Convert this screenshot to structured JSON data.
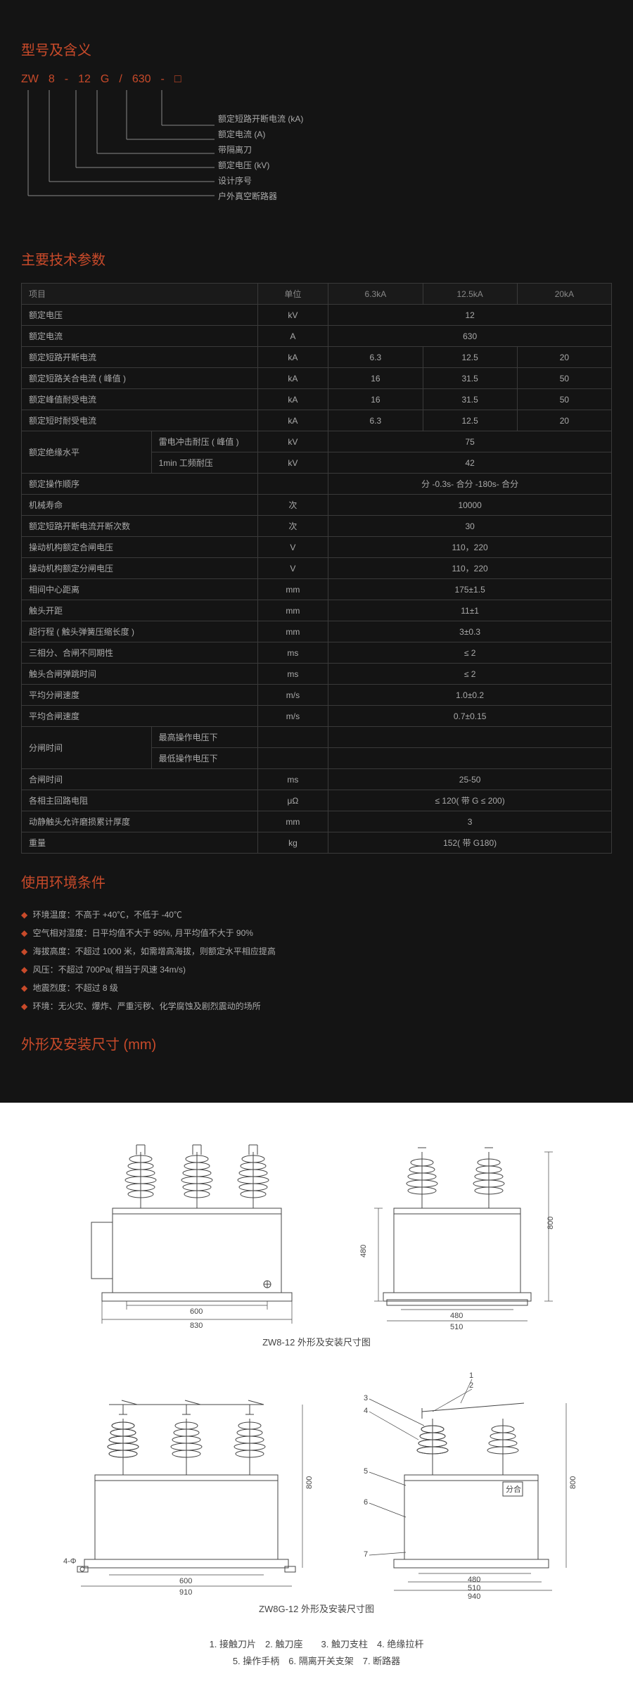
{
  "sections": {
    "model": "型号及含义",
    "spec": "主要技术参数",
    "env": "使用环境条件",
    "dim": "外形及安装尺寸 (mm)"
  },
  "model": {
    "parts": [
      "ZW",
      "8",
      "-",
      "12",
      "G",
      "/",
      "630",
      "-",
      "□"
    ],
    "desc": [
      "额定短路开断电流 (kA)",
      "额定电流 (A)",
      "带隔离刀",
      "额定电压 (kV)",
      "设计序号",
      "户外真空断路器"
    ]
  },
  "specTable": {
    "headers": [
      "项目",
      "单位",
      "6.3kA",
      "12.5kA",
      "20kA"
    ],
    "rows": [
      {
        "label": "额定电压",
        "unit": "kV",
        "span": "12"
      },
      {
        "label": "额定电流",
        "unit": "A",
        "span": "630"
      },
      {
        "label": "额定短路开断电流",
        "unit": "kA",
        "v": [
          "6.3",
          "12.5",
          "20"
        ]
      },
      {
        "label": "额定短路关合电流 ( 峰值 )",
        "unit": "kA",
        "v": [
          "16",
          "31.5",
          "50"
        ]
      },
      {
        "label": "额定峰值耐受电流",
        "unit": "kA",
        "v": [
          "16",
          "31.5",
          "50"
        ]
      },
      {
        "label": "额定短时耐受电流",
        "unit": "kA",
        "v": [
          "6.3",
          "12.5",
          "20"
        ]
      },
      {
        "label": "额定绝缘水平",
        "sub": [
          {
            "label": "雷电冲击耐压 ( 峰值 )",
            "unit": "kV",
            "span": "75"
          },
          {
            "label": "1min 工频耐压",
            "unit": "kV",
            "span": "42"
          }
        ]
      },
      {
        "label": "额定操作顺序",
        "unit": "",
        "span": "分 -0.3s- 合分 -180s- 合分"
      },
      {
        "label": "机械寿命",
        "unit": "次",
        "span": "10000"
      },
      {
        "label": "额定短路开断电流开断次数",
        "unit": "次",
        "span": "30"
      },
      {
        "label": "操动机构额定合闸电压",
        "unit": "V",
        "span": "110，220"
      },
      {
        "label": "操动机构额定分闸电压",
        "unit": "V",
        "span": "110，220"
      },
      {
        "label": "相间中心距离",
        "unit": "mm",
        "span": "175±1.5"
      },
      {
        "label": "触头开距",
        "unit": "mm",
        "span": "11±1"
      },
      {
        "label": "超行程 ( 触头弹簧压缩长度 )",
        "unit": "mm",
        "span": "3±0.3"
      },
      {
        "label": "三相分、合闸不同期性",
        "unit": "ms",
        "span": "≤ 2"
      },
      {
        "label": "触头合闸弹跳时间",
        "unit": "ms",
        "span": "≤ 2"
      },
      {
        "label": "平均分闸速度",
        "unit": "m/s",
        "span": "1.0±0.2"
      },
      {
        "label": "平均合闸速度",
        "unit": "m/s",
        "span": "0.7±0.15"
      },
      {
        "label": "分闸时间",
        "sub2": [
          "最高操作电压下",
          "最低操作电压下"
        ]
      },
      {
        "label": "合闸时间",
        "unit": "ms",
        "span": "25-50"
      },
      {
        "label": "各相主回路电阻",
        "unit": "μΩ",
        "span": "≤ 120( 带 G ≤ 200)"
      },
      {
        "label": "动静触头允许磨损累计厚度",
        "unit": "mm",
        "span": "3"
      },
      {
        "label": "重量",
        "unit": "kg",
        "span": "152( 带 G180)"
      }
    ]
  },
  "env": [
    "环境温度：不高于 +40℃，不低于 -40℃",
    "空气相对湿度：日平均值不大于 95%, 月平均值不大于 90%",
    "海拔高度：不超过 1000 米，如需增高海拔，则额定水平相应提高",
    "风压：不超过 700Pa( 相当于风速 34m/s)",
    "地震烈度：不超过 8 级",
    "环境：无火灾、爆炸、严重污秽、化学腐蚀及剧烈震动的场所"
  ],
  "drawings": {
    "cap1": "ZW8-12 外形及安装尺寸图",
    "cap2": "ZW8G-12 外形及安装尺寸图",
    "dims": {
      "w600": "600",
      "w830": "830",
      "w480": "480",
      "w510": "510",
      "w910": "910",
      "w940": "940",
      "h800": "800",
      "h480i": "480"
    }
  },
  "parts": {
    "line1": "1. 接触刀片　2. 触刀座　　3. 触刀支柱　4. 绝缘拉杆",
    "line2": "5. 操作手柄　6. 隔离开关支架　7. 断路器"
  },
  "colors": {
    "bg": "#141414",
    "accent": "#c84a2a",
    "text": "#aaa",
    "border": "#3a3a3a",
    "white": "#fff"
  }
}
